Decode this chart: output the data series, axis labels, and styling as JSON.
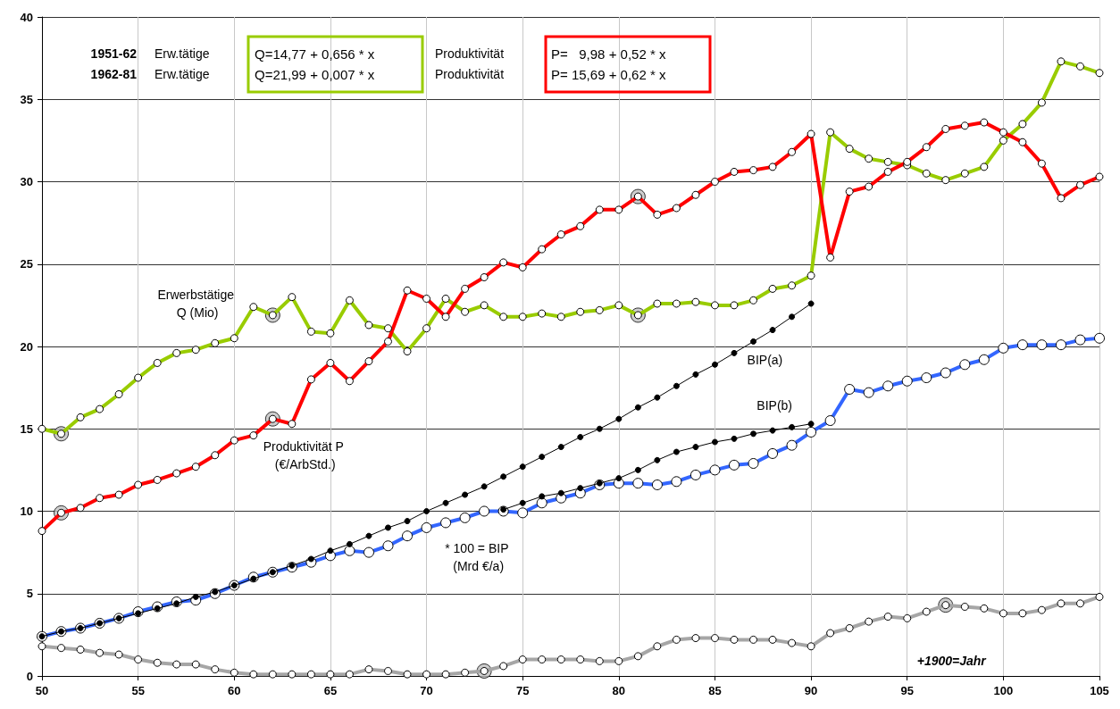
{
  "chart_data": {
    "type": "line",
    "x": [
      50,
      51,
      52,
      53,
      54,
      55,
      56,
      57,
      58,
      59,
      60,
      61,
      62,
      63,
      64,
      65,
      66,
      67,
      68,
      69,
      70,
      71,
      72,
      73,
      74,
      75,
      76,
      77,
      78,
      79,
      80,
      81,
      82,
      83,
      84,
      85,
      86,
      87,
      88,
      89,
      90,
      91,
      92,
      93,
      94,
      95,
      96,
      97,
      98,
      99,
      100,
      101,
      102,
      103,
      104,
      105
    ],
    "series": [
      {
        "name": "Erwerbstätige Q (Mio)",
        "color": "#99cc00",
        "values": [
          15.0,
          14.7,
          15.7,
          16.2,
          17.1,
          18.1,
          19.0,
          19.6,
          19.8,
          20.2,
          20.5,
          22.4,
          21.9,
          23.0,
          20.9,
          20.8,
          22.8,
          21.3,
          21.1,
          19.7,
          21.1,
          22.9,
          22.1,
          22.5,
          21.8,
          21.8,
          22.0,
          21.8,
          22.1,
          22.2,
          22.5,
          21.9,
          22.6,
          22.6,
          22.7,
          22.5,
          22.5,
          22.8,
          23.5,
          23.7,
          24.3,
          33.0,
          32.0,
          31.4,
          31.2,
          31.0,
          30.5,
          30.1,
          30.5,
          30.9,
          32.5,
          33.5,
          34.8,
          37.3,
          37.0,
          36.6
        ]
      },
      {
        "name": "Produktivität P (€/ArbStd.)",
        "color": "#ff0000",
        "values": [
          8.8,
          9.9,
          10.2,
          10.8,
          11.0,
          11.6,
          11.9,
          12.3,
          12.7,
          13.4,
          14.3,
          14.6,
          15.6,
          15.3,
          18.0,
          19.0,
          17.9,
          19.1,
          20.3,
          23.4,
          22.9,
          21.8,
          23.5,
          24.2,
          25.1,
          24.8,
          25.9,
          26.8,
          27.3,
          28.3,
          28.3,
          29.1,
          28.0,
          28.4,
          29.2,
          30.0,
          30.6,
          30.7,
          30.9,
          31.8,
          32.9,
          25.4,
          29.4,
          29.7,
          30.6,
          31.2,
          32.1,
          33.2,
          33.4,
          33.6,
          33.0,
          32.4,
          31.1,
          29.0,
          29.8,
          30.3
        ]
      },
      {
        "name": "* 100 = BIP (Mrd €/a)",
        "color": "#3366ff",
        "values": [
          2.4,
          2.7,
          2.9,
          3.2,
          3.5,
          3.9,
          4.2,
          4.5,
          4.6,
          5.0,
          5.5,
          6.0,
          6.3,
          6.6,
          6.9,
          7.3,
          7.6,
          7.5,
          7.9,
          8.5,
          9.0,
          9.3,
          9.6,
          10.0,
          10.0,
          9.9,
          10.5,
          10.8,
          11.1,
          11.6,
          11.7,
          11.7,
          11.6,
          11.8,
          12.2,
          12.5,
          12.8,
          12.9,
          13.5,
          14.0,
          14.8,
          15.5,
          17.4,
          17.2,
          17.6,
          17.9,
          18.1,
          18.4,
          18.9,
          19.2,
          19.9,
          20.1,
          20.1,
          20.1,
          20.4,
          20.5
        ]
      },
      {
        "name": "BIP(a)",
        "color": "#000000",
        "x": [
          50,
          51,
          52,
          53,
          54,
          55,
          56,
          57,
          58,
          59,
          60,
          61,
          62,
          63,
          64,
          65,
          66,
          67,
          68,
          69,
          70,
          71,
          72,
          73,
          74,
          75,
          76,
          77,
          78,
          79,
          80,
          81,
          82,
          83,
          84,
          85,
          86,
          87,
          88,
          89,
          90
        ],
        "values": [
          2.4,
          2.7,
          2.9,
          3.2,
          3.5,
          3.8,
          4.1,
          4.4,
          4.8,
          5.1,
          5.5,
          5.9,
          6.3,
          6.7,
          7.1,
          7.6,
          8.0,
          8.5,
          9.0,
          9.4,
          10.0,
          10.5,
          11.0,
          11.5,
          12.1,
          12.7,
          13.3,
          13.9,
          14.5,
          15.0,
          15.6,
          16.3,
          16.9,
          17.6,
          18.3,
          18.9,
          19.6,
          20.3,
          21.0,
          21.8,
          22.6
        ]
      },
      {
        "name": "BIP(b)",
        "color": "#000000",
        "x": [
          74,
          75,
          76,
          77,
          78,
          79,
          80,
          81,
          82,
          83,
          84,
          85,
          86,
          87,
          88,
          89,
          90
        ],
        "values": [
          10.1,
          10.5,
          10.9,
          11.1,
          11.4,
          11.7,
          12.0,
          12.5,
          13.1,
          13.6,
          13.9,
          14.2,
          14.4,
          14.7,
          14.9,
          15.1,
          15.3
        ]
      },
      {
        "color": "#a6a6a6",
        "values": [
          1.8,
          1.7,
          1.6,
          1.4,
          1.3,
          1.0,
          0.8,
          0.7,
          0.7,
          0.4,
          0.2,
          0.1,
          0.1,
          0.1,
          0.1,
          0.1,
          0.1,
          0.4,
          0.3,
          0.1,
          0.1,
          0.1,
          0.2,
          0.3,
          0.6,
          1.0,
          1.0,
          1.0,
          1.0,
          0.9,
          0.9,
          1.2,
          1.8,
          2.2,
          2.3,
          2.3,
          2.2,
          2.2,
          2.2,
          2.0,
          1.8,
          2.6,
          2.9,
          3.3,
          3.6,
          3.5,
          3.9,
          4.3,
          4.2,
          4.1,
          3.8,
          3.8,
          4.0,
          4.4,
          4.4,
          4.8
        ]
      },
      {
        "type": "scatter",
        "color": "#c0c0c0",
        "x": [
          51,
          62,
          81,
          51,
          62,
          81,
          73,
          97
        ],
        "values": [
          14.7,
          21.9,
          21.9,
          9.9,
          15.6,
          29.1,
          0.3,
          4.3
        ]
      }
    ],
    "xlim": [
      50,
      105
    ],
    "xticks": [
      50,
      55,
      60,
      65,
      70,
      75,
      80,
      85,
      90,
      95,
      100,
      105
    ],
    "ylim": [
      0,
      40
    ],
    "yticks": [
      0,
      5,
      10,
      15,
      20,
      25,
      30,
      35,
      40
    ],
    "grid": true,
    "marker": "circle",
    "line_style": "solid",
    "annotations": [
      "1951-62",
      "Erw.tätige",
      "Q=14,77 + 0,656 * x",
      "Produktivität",
      "P=   9,98 + 0,52 * x",
      "1962-81",
      "Erw.tätige",
      "Q=21,99 + 0,007 * x",
      "Produktivität",
      "P= 15,69 + 0,62 * x",
      "+1900=Jahr"
    ]
  }
}
